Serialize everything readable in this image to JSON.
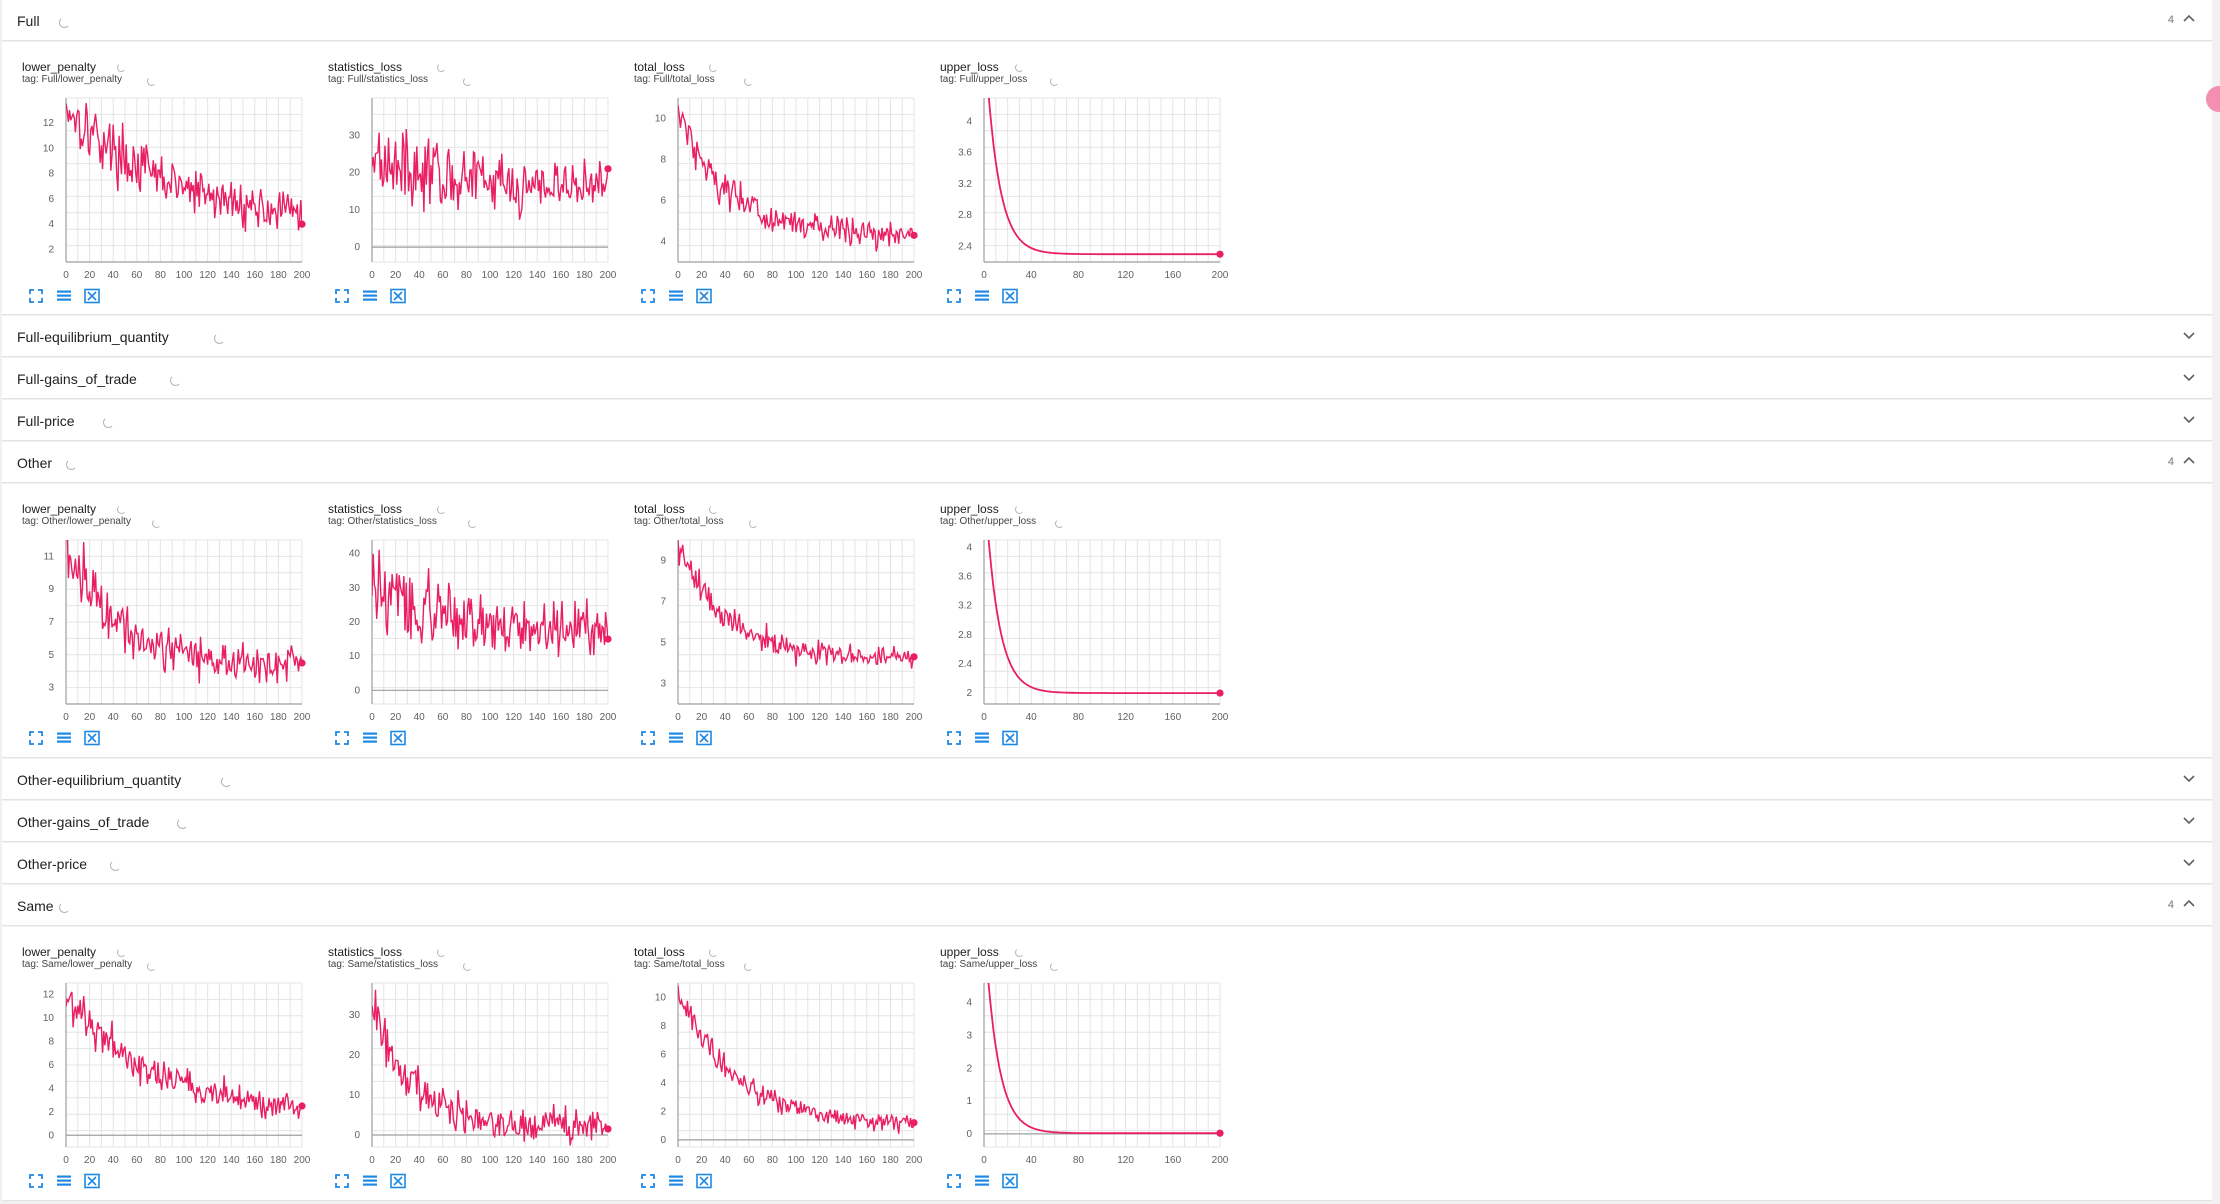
{
  "accent_color": "#e91e63",
  "sections": [
    {
      "title": "Full",
      "expanded": true,
      "count": "4",
      "cards": [
        {
          "title": "lower_penalty",
          "tag": "tag: Full/lower_penalty"
        },
        {
          "title": "statistics_loss",
          "tag": "tag: Full/statistics_loss"
        },
        {
          "title": "total_loss",
          "tag": "tag: Full/total_loss"
        },
        {
          "title": "upper_loss",
          "tag": "tag: Full/upper_loss"
        }
      ]
    },
    {
      "title": "Full-equilibrium_quantity",
      "expanded": false
    },
    {
      "title": "Full-gains_of_trade",
      "expanded": false
    },
    {
      "title": "Full-price",
      "expanded": false
    },
    {
      "title": "Other",
      "expanded": true,
      "count": "4",
      "cards": [
        {
          "title": "lower_penalty",
          "tag": "tag: Other/lower_penalty"
        },
        {
          "title": "statistics_loss",
          "tag": "tag: Other/statistics_loss"
        },
        {
          "title": "total_loss",
          "tag": "tag: Other/total_loss"
        },
        {
          "title": "upper_loss",
          "tag": "tag: Other/upper_loss"
        }
      ]
    },
    {
      "title": "Other-equilibrium_quantity",
      "expanded": false
    },
    {
      "title": "Other-gains_of_trade",
      "expanded": false
    },
    {
      "title": "Other-price",
      "expanded": false
    },
    {
      "title": "Same",
      "expanded": true,
      "count": "4",
      "cards": [
        {
          "title": "lower_penalty",
          "tag": "tag: Same/lower_penalty"
        },
        {
          "title": "statistics_loss",
          "tag": "tag: Same/statistics_loss"
        },
        {
          "title": "total_loss",
          "tag": "tag: Same/total_loss"
        },
        {
          "title": "upper_loss",
          "tag": "tag: Same/upper_loss"
        }
      ]
    }
  ],
  "chart_data": [
    {
      "section": "Full",
      "title": "lower_penalty",
      "type": "line",
      "xlim": [
        0,
        200
      ],
      "ylim": [
        1,
        14
      ],
      "xticks": [
        "0",
        "20",
        "40",
        "60",
        "80",
        "100",
        "120",
        "140",
        "160",
        "180",
        "200"
      ],
      "yticks": [
        "2",
        "4",
        "6",
        "8",
        "10",
        "12"
      ],
      "trend": {
        "start": 13.5,
        "end": 4.0,
        "decay": 0.012
      },
      "noise": 3.2,
      "last": 4.0
    },
    {
      "section": "Full",
      "title": "statistics_loss",
      "type": "line",
      "xlim": [
        0,
        200
      ],
      "ylim": [
        -4,
        40
      ],
      "xticks": [
        "0",
        "20",
        "40",
        "60",
        "80",
        "100",
        "120",
        "140",
        "160",
        "180",
        "200"
      ],
      "yticks": [
        "0",
        "10",
        "20",
        "30"
      ],
      "trend": {
        "start": 26,
        "end": 16,
        "decay": 0.02
      },
      "noise": 13,
      "last": 21
    },
    {
      "section": "Full",
      "title": "total_loss",
      "type": "line",
      "xlim": [
        0,
        200
      ],
      "ylim": [
        3,
        11
      ],
      "xticks": [
        "0",
        "20",
        "40",
        "60",
        "80",
        "100",
        "120",
        "140",
        "160",
        "180",
        "200"
      ],
      "yticks": [
        "4",
        "6",
        "8",
        "10"
      ],
      "trend": {
        "start": 10.5,
        "end": 4.3,
        "decay": 0.025
      },
      "noise": 1.3,
      "last": 4.3
    },
    {
      "section": "Full",
      "title": "upper_loss",
      "type": "line",
      "xlim": [
        0,
        200
      ],
      "ylim": [
        2.2,
        4.3
      ],
      "xticks": [
        "0",
        "40",
        "80",
        "120",
        "160",
        "200"
      ],
      "yticks": [
        "2.4",
        "2.8",
        "3.2",
        "3.6",
        "4"
      ],
      "trend": {
        "start": 5.2,
        "end": 2.3,
        "decay": 0.09
      },
      "noise": 0,
      "last": 2.3
    },
    {
      "section": "Other",
      "title": "lower_penalty",
      "type": "line",
      "xlim": [
        0,
        200
      ],
      "ylim": [
        2,
        12
      ],
      "xticks": [
        "0",
        "20",
        "40",
        "60",
        "80",
        "100",
        "120",
        "140",
        "160",
        "180",
        "200"
      ],
      "yticks": [
        "3",
        "5",
        "7",
        "9",
        "11"
      ],
      "trend": {
        "start": 11.5,
        "end": 4.2,
        "decay": 0.02
      },
      "noise": 2.4,
      "last": 4.5
    },
    {
      "section": "Other",
      "title": "statistics_loss",
      "type": "line",
      "xlim": [
        0,
        200
      ],
      "ylim": [
        -4,
        44
      ],
      "xticks": [
        "0",
        "20",
        "40",
        "60",
        "80",
        "100",
        "120",
        "140",
        "160",
        "180",
        "200"
      ],
      "yticks": [
        "0",
        "10",
        "20",
        "30",
        "40"
      ],
      "trend": {
        "start": 30,
        "end": 18,
        "decay": 0.02
      },
      "noise": 15,
      "last": 15
    },
    {
      "section": "Other",
      "title": "total_loss",
      "type": "line",
      "xlim": [
        0,
        200
      ],
      "ylim": [
        2,
        10
      ],
      "xticks": [
        "0",
        "20",
        "40",
        "60",
        "80",
        "100",
        "120",
        "140",
        "160",
        "180",
        "200"
      ],
      "yticks": [
        "3",
        "5",
        "7",
        "9"
      ],
      "trend": {
        "start": 9.8,
        "end": 4.2,
        "decay": 0.025
      },
      "noise": 1.0,
      "last": 4.3
    },
    {
      "section": "Other",
      "title": "upper_loss",
      "type": "line",
      "xlim": [
        0,
        200
      ],
      "ylim": [
        1.85,
        4.1
      ],
      "xticks": [
        "0",
        "40",
        "80",
        "120",
        "160",
        "200"
      ],
      "yticks": [
        "2",
        "2.4",
        "2.8",
        "3.2",
        "3.6",
        "4"
      ],
      "trend": {
        "start": 5.0,
        "end": 2.0,
        "decay": 0.09
      },
      "noise": 0,
      "last": 2.0
    },
    {
      "section": "Same",
      "title": "lower_penalty",
      "type": "line",
      "xlim": [
        0,
        200
      ],
      "ylim": [
        -1,
        13
      ],
      "xticks": [
        "0",
        "20",
        "40",
        "60",
        "80",
        "100",
        "120",
        "140",
        "160",
        "180",
        "200"
      ],
      "yticks": [
        "0",
        "2",
        "4",
        "6",
        "8",
        "10",
        "12"
      ],
      "trend": {
        "start": 12,
        "end": 1.5,
        "decay": 0.013
      },
      "noise": 2.4,
      "last": 2.5
    },
    {
      "section": "Same",
      "title": "statistics_loss",
      "type": "line",
      "xlim": [
        0,
        200
      ],
      "ylim": [
        -3,
        38
      ],
      "xticks": [
        "0",
        "20",
        "40",
        "60",
        "80",
        "100",
        "120",
        "140",
        "160",
        "180",
        "200"
      ],
      "yticks": [
        "0",
        "10",
        "20",
        "30"
      ],
      "trend": {
        "start": 32,
        "end": 2,
        "decay": 0.03
      },
      "noise": 8,
      "last": 1.5
    },
    {
      "section": "Same",
      "title": "total_loss",
      "type": "line",
      "xlim": [
        0,
        200
      ],
      "ylim": [
        -0.5,
        11
      ],
      "xticks": [
        "0",
        "20",
        "40",
        "60",
        "80",
        "100",
        "120",
        "140",
        "160",
        "180",
        "200"
      ],
      "yticks": [
        "0",
        "2",
        "4",
        "6",
        "8",
        "10"
      ],
      "trend": {
        "start": 10.2,
        "end": 1,
        "decay": 0.02
      },
      "noise": 1.3,
      "last": 1.2
    },
    {
      "section": "Same",
      "title": "upper_loss",
      "type": "line",
      "xlim": [
        0,
        200
      ],
      "ylim": [
        -0.4,
        4.6
      ],
      "xticks": [
        "0",
        "40",
        "80",
        "120",
        "160",
        "200"
      ],
      "yticks": [
        "0",
        "1",
        "2",
        "3",
        "4"
      ],
      "trend": {
        "start": 6.5,
        "end": 0.02,
        "decay": 0.09
      },
      "noise": 0,
      "last": 0.02
    }
  ]
}
